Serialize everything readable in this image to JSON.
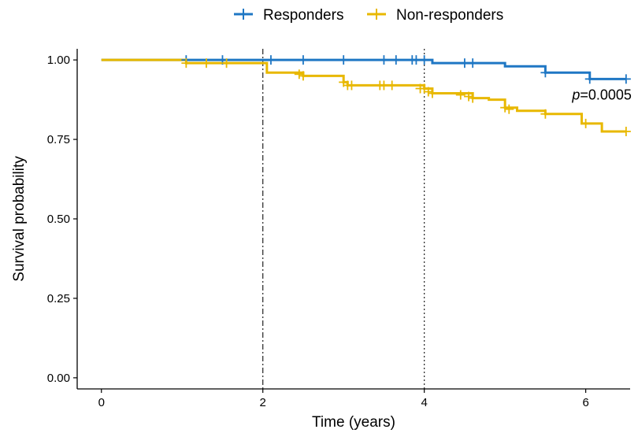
{
  "chart_data": {
    "type": "line",
    "title": "",
    "xlabel": "Time (years)",
    "ylabel": "Survival probability",
    "xlim": [
      -0.3,
      6.55
    ],
    "ylim": [
      -0.035,
      1.035
    ],
    "x_ticks": [
      0,
      2,
      4,
      6
    ],
    "y_ticks": [
      0.0,
      0.25,
      0.5,
      0.75,
      1.0
    ],
    "x_tick_labels": [
      "0",
      "2",
      "4",
      "6"
    ],
    "y_tick_labels": [
      "0.00",
      "0.25",
      "0.50",
      "0.75",
      "1.00"
    ],
    "grid": false,
    "legend_position": "top",
    "reference_lines": [
      {
        "x": 2,
        "style": "dashdot"
      },
      {
        "x": 4,
        "style": "dotted"
      }
    ],
    "annotation": {
      "prefix": "p",
      "text": "=0.0005",
      "x": 6.2,
      "y": 0.89
    },
    "series": [
      {
        "name": "Responders",
        "color": "#1f77c4",
        "steps": [
          [
            0,
            1.0
          ],
          [
            4.1,
            0.99
          ],
          [
            5.0,
            0.98
          ],
          [
            5.5,
            0.96
          ],
          [
            6.05,
            0.94
          ],
          [
            6.5,
            0.94
          ]
        ],
        "censor": [
          [
            1.05,
            1.0
          ],
          [
            1.5,
            1.0
          ],
          [
            2.1,
            1.0
          ],
          [
            2.5,
            1.0
          ],
          [
            3.0,
            1.0
          ],
          [
            3.5,
            1.0
          ],
          [
            3.65,
            1.0
          ],
          [
            3.85,
            1.0
          ],
          [
            3.9,
            1.0
          ],
          [
            4.0,
            1.0
          ],
          [
            4.5,
            0.99
          ],
          [
            4.6,
            0.99
          ],
          [
            5.5,
            0.96
          ],
          [
            6.05,
            0.94
          ],
          [
            6.5,
            0.94
          ]
        ]
      },
      {
        "name": "Non-responders",
        "color": "#e8b800",
        "steps": [
          [
            0,
            1.0
          ],
          [
            1.05,
            0.99
          ],
          [
            1.95,
            0.99
          ],
          [
            2.05,
            0.96
          ],
          [
            2.5,
            0.95
          ],
          [
            3.0,
            0.93
          ],
          [
            3.05,
            0.92
          ],
          [
            3.5,
            0.92
          ],
          [
            3.75,
            0.92
          ],
          [
            4.0,
            0.91
          ],
          [
            4.1,
            0.895
          ],
          [
            4.6,
            0.88
          ],
          [
            4.8,
            0.875
          ],
          [
            5.0,
            0.85
          ],
          [
            5.15,
            0.84
          ],
          [
            5.5,
            0.83
          ],
          [
            5.95,
            0.8
          ],
          [
            6.2,
            0.775
          ],
          [
            6.5,
            0.775
          ]
        ],
        "censor": [
          [
            1.05,
            0.99
          ],
          [
            1.3,
            0.99
          ],
          [
            1.55,
            0.99
          ],
          [
            2.45,
            0.955
          ],
          [
            2.5,
            0.95
          ],
          [
            3.0,
            0.93
          ],
          [
            3.05,
            0.92
          ],
          [
            3.1,
            0.92
          ],
          [
            3.45,
            0.92
          ],
          [
            3.5,
            0.92
          ],
          [
            3.6,
            0.92
          ],
          [
            3.95,
            0.91
          ],
          [
            4.0,
            0.91
          ],
          [
            4.05,
            0.9
          ],
          [
            4.1,
            0.895
          ],
          [
            4.45,
            0.89
          ],
          [
            4.55,
            0.885
          ],
          [
            4.6,
            0.88
          ],
          [
            5.0,
            0.85
          ],
          [
            5.05,
            0.845
          ],
          [
            5.5,
            0.83
          ],
          [
            6.0,
            0.8
          ],
          [
            6.5,
            0.775
          ]
        ]
      }
    ]
  }
}
